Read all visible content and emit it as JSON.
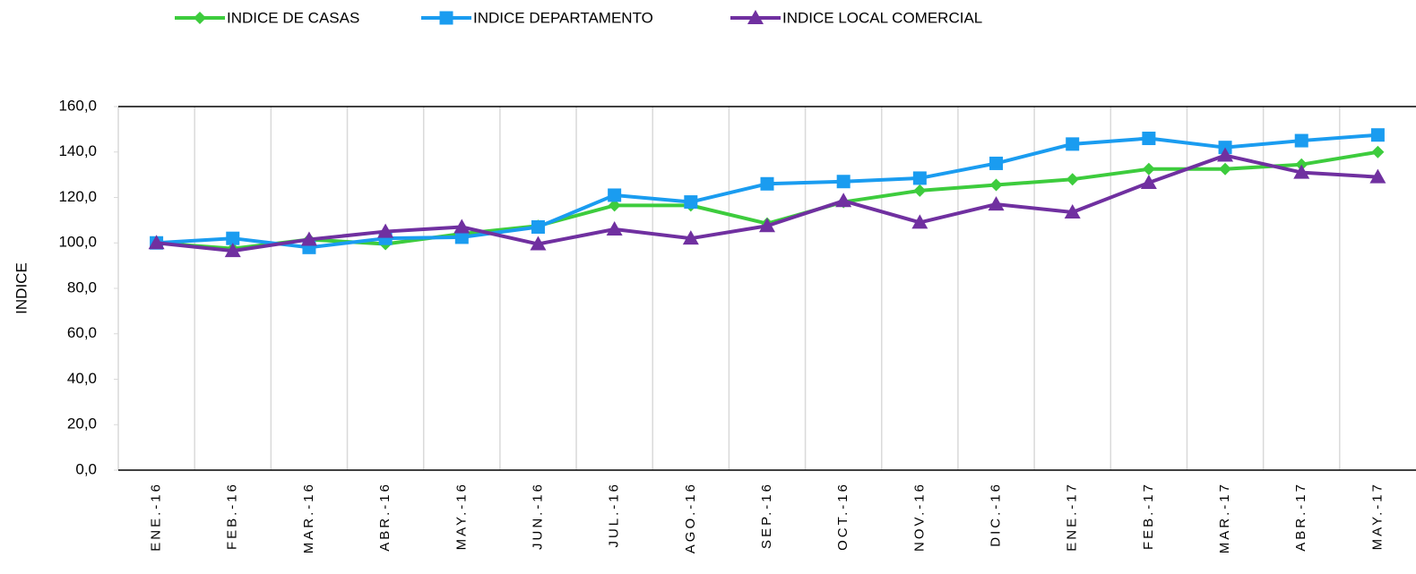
{
  "chart_data": {
    "type": "line",
    "y_label": "INDICE",
    "categories": [
      "ENE.-16",
      "FEB.-16",
      "MAR.-16",
      "ABR.-16",
      "MAY.-16",
      "JUN.-16",
      "JUL.-16",
      "AGO.-16",
      "SEP.-16",
      "OCT.-16",
      "NOV.-16",
      "DIC.-16",
      "ENE.-17",
      "FEB.-17",
      "MAR.-17",
      "ABR.-17",
      "MAY.-17"
    ],
    "series": [
      {
        "name": "INDICE DE CASAS",
        "color": "#3dcc3d",
        "marker": "diamond",
        "values": [
          100,
          97.5,
          101.5,
          99.5,
          104,
          107.5,
          116.5,
          116.5,
          108.5,
          118,
          123,
          125.5,
          128,
          132.5,
          132.5,
          134.5,
          140
        ]
      },
      {
        "name": "INDICE DEPARTAMENTO",
        "color": "#1a9cf0",
        "marker": "square",
        "values": [
          100,
          102,
          98,
          102,
          102.5,
          107,
          121,
          118,
          126,
          127,
          128.5,
          135,
          143.5,
          146,
          142,
          145,
          147.5
        ]
      },
      {
        "name": "INDICE LOCAL COMERCIAL",
        "color": "#7030a0",
        "marker": "triangle",
        "values": [
          100,
          96.5,
          101.5,
          105,
          107,
          99.5,
          106,
          102,
          107.5,
          118.5,
          109,
          117,
          113.5,
          126.5,
          138.5,
          131,
          129
        ]
      }
    ],
    "ylim": [
      0,
      160
    ],
    "yticks": [
      {
        "value": 0,
        "label": "0,0"
      },
      {
        "value": 20,
        "label": "20,0"
      },
      {
        "value": 40,
        "label": "40,0"
      },
      {
        "value": 60,
        "label": "60,0"
      },
      {
        "value": 80,
        "label": "80,0"
      },
      {
        "value": 100,
        "label": "100,0"
      },
      {
        "value": 120,
        "label": "120,0"
      },
      {
        "value": 140,
        "label": "140,0"
      },
      {
        "value": 160,
        "label": "160,0"
      }
    ]
  }
}
